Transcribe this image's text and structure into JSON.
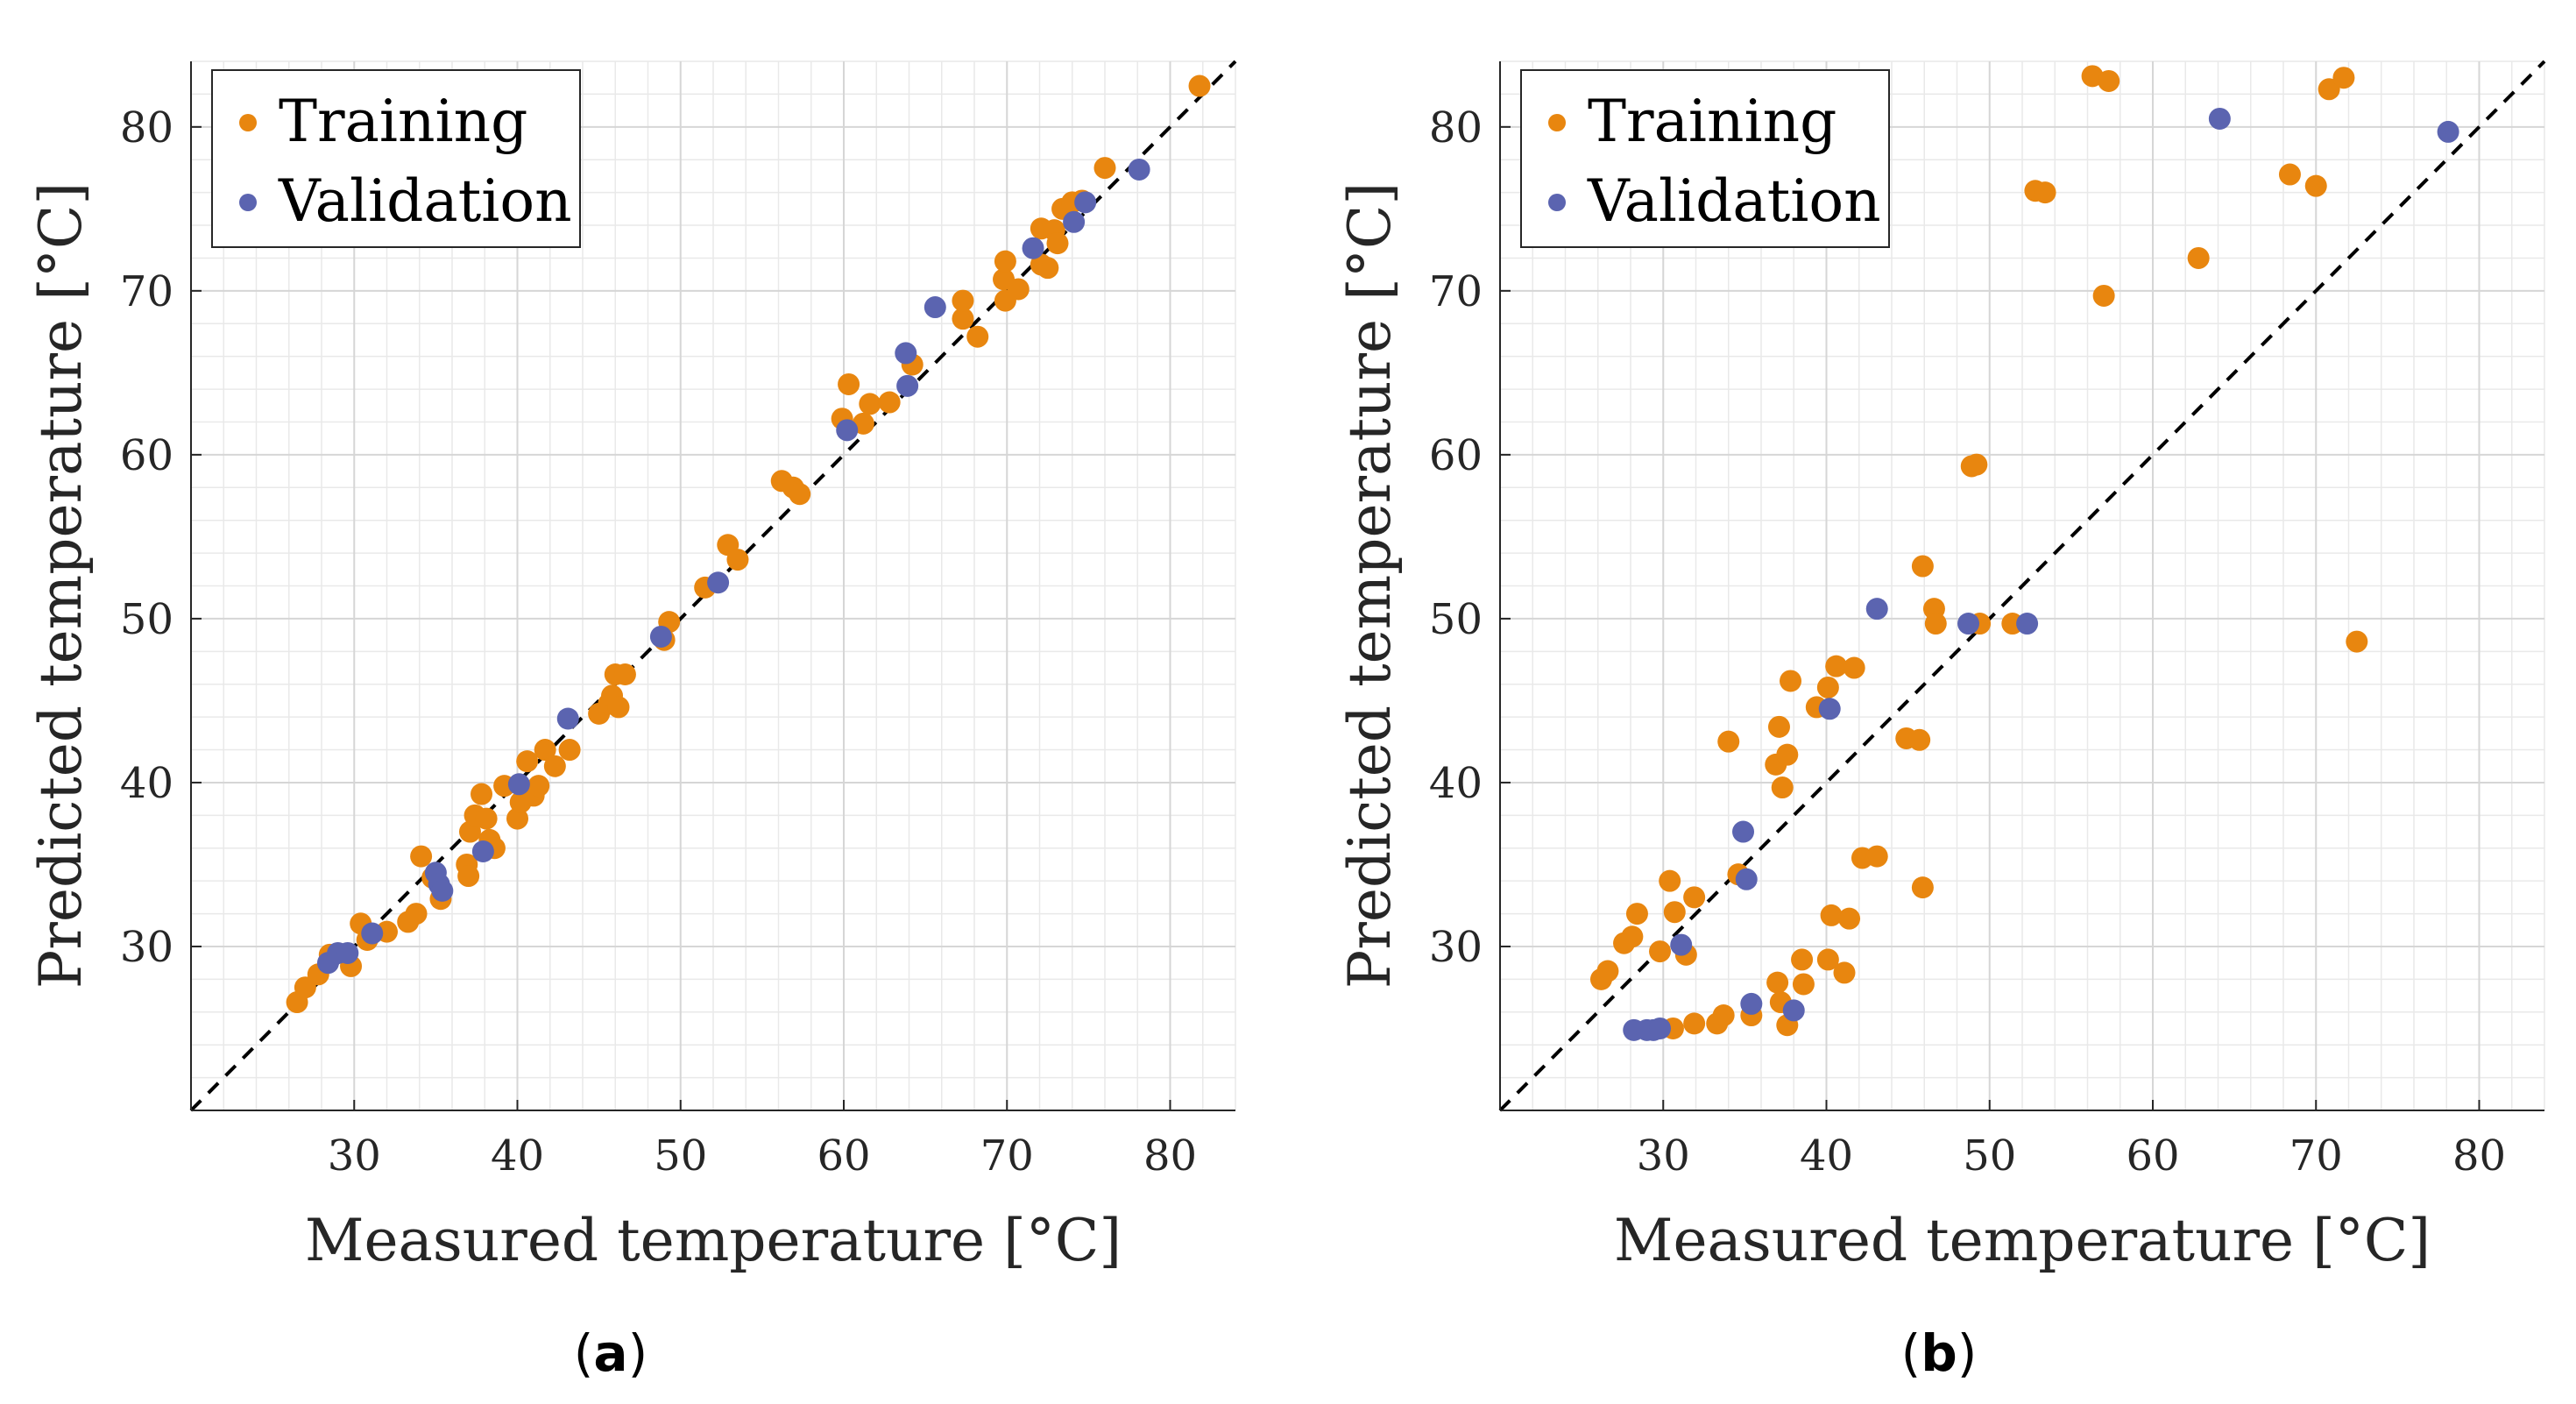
{
  "figure": {
    "colors": {
      "training": "#e8860f",
      "validation": "#5b64b0",
      "grid": "#e9e9e9",
      "axis": "#262626",
      "diagonal": "#000000"
    }
  },
  "chart_data": [
    {
      "type": "scatter",
      "panel_label": "a",
      "xlabel": "Measured temperature [°C]",
      "ylabel": "Predicted temperature [°C]",
      "xlim": [
        20,
        84
      ],
      "ylim": [
        20,
        84
      ],
      "xticks": [
        30,
        40,
        50,
        60,
        70,
        80
      ],
      "yticks": [
        30,
        40,
        50,
        60,
        70,
        80
      ],
      "grid": true,
      "legend": "top-left",
      "reference_line": "y = x (dashed)",
      "series": [
        {
          "name": "Training",
          "color": "#e8860f",
          "points": [
            [
              26.5,
              26.6
            ],
            [
              27,
              27.5
            ],
            [
              27.8,
              28.3
            ],
            [
              28.5,
              29.5
            ],
            [
              29.8,
              28.8
            ],
            [
              30.4,
              31.4
            ],
            [
              30.8,
              30.4
            ],
            [
              32,
              30.9
            ],
            [
              33.3,
              31.5
            ],
            [
              33.8,
              32
            ],
            [
              34.1,
              35.5
            ],
            [
              34.8,
              34.2
            ],
            [
              35.3,
              32.9
            ],
            [
              36.9,
              35
            ],
            [
              37,
              34.3
            ],
            [
              37.1,
              37
            ],
            [
              37.4,
              38
            ],
            [
              37.8,
              39.3
            ],
            [
              38.1,
              37.8
            ],
            [
              38.3,
              36.5
            ],
            [
              38.6,
              36
            ],
            [
              39.2,
              39.8
            ],
            [
              40,
              37.8
            ],
            [
              40.2,
              38.8
            ],
            [
              40.6,
              41.3
            ],
            [
              41,
              39.2
            ],
            [
              41.3,
              39.8
            ],
            [
              41.7,
              42
            ],
            [
              42.3,
              41
            ],
            [
              43.2,
              42
            ],
            [
              45,
              44.2
            ],
            [
              45.6,
              44.8
            ],
            [
              45.8,
              45.3
            ],
            [
              46,
              46.6
            ],
            [
              46.2,
              44.6
            ],
            [
              46.6,
              46.6
            ],
            [
              49,
              48.7
            ],
            [
              49.3,
              49.8
            ],
            [
              51.5,
              51.9
            ],
            [
              52.9,
              54.5
            ],
            [
              53.5,
              53.6
            ],
            [
              56.2,
              58.4
            ],
            [
              56.9,
              58
            ],
            [
              57.3,
              57.6
            ],
            [
              59.9,
              62.2
            ],
            [
              60.3,
              64.3
            ],
            [
              61.2,
              61.9
            ],
            [
              61.6,
              63.1
            ],
            [
              62.8,
              63.2
            ],
            [
              64.2,
              65.5
            ],
            [
              67.3,
              68.3
            ],
            [
              67.3,
              69.4
            ],
            [
              68.2,
              67.2
            ],
            [
              69.8,
              70.7
            ],
            [
              69.9,
              71.8
            ],
            [
              69.9,
              69.4
            ],
            [
              70.7,
              70.1
            ],
            [
              72.1,
              71.6
            ],
            [
              72.1,
              73.8
            ],
            [
              72.5,
              71.4
            ],
            [
              72.9,
              73.7
            ],
            [
              73.1,
              72.9
            ],
            [
              73.4,
              75
            ],
            [
              74,
              75.4
            ],
            [
              74.6,
              75.5
            ],
            [
              76,
              77.5
            ],
            [
              81.8,
              82.5
            ]
          ]
        },
        {
          "name": "Validation",
          "color": "#5b64b0",
          "points": [
            [
              28.4,
              29
            ],
            [
              29,
              29.6
            ],
            [
              29.6,
              29.6
            ],
            [
              31.1,
              30.8
            ],
            [
              35,
              34.5
            ],
            [
              35.2,
              33.8
            ],
            [
              35.4,
              33.4
            ],
            [
              37.9,
              35.8
            ],
            [
              40.1,
              39.9
            ],
            [
              43.1,
              43.9
            ],
            [
              48.8,
              48.9
            ],
            [
              52.3,
              52.2
            ],
            [
              60.2,
              61.5
            ],
            [
              63.8,
              66.2
            ],
            [
              63.9,
              64.2
            ],
            [
              65.6,
              69
            ],
            [
              71.6,
              72.6
            ],
            [
              74.1,
              74.2
            ],
            [
              74.8,
              75.4
            ],
            [
              78.1,
              77.4
            ]
          ]
        }
      ]
    },
    {
      "type": "scatter",
      "panel_label": "b",
      "xlabel": "Measured temperature [°C]",
      "ylabel": "Predicted temperature [°C]",
      "xlim": [
        20,
        84
      ],
      "ylim": [
        20,
        84
      ],
      "xticks": [
        30,
        40,
        50,
        60,
        70,
        80
      ],
      "yticks": [
        30,
        40,
        50,
        60,
        70,
        80
      ],
      "grid": true,
      "legend": "top-left",
      "reference_line": "y = x (dashed)",
      "series": [
        {
          "name": "Training",
          "color": "#e8860f",
          "points": [
            [
              26.2,
              28
            ],
            [
              26.6,
              28.5
            ],
            [
              27.6,
              30.2
            ],
            [
              28.1,
              30.6
            ],
            [
              28.4,
              32
            ],
            [
              29.8,
              29.7
            ],
            [
              30.4,
              34
            ],
            [
              30.6,
              25
            ],
            [
              30.7,
              32.1
            ],
            [
              31.4,
              29.5
            ],
            [
              31.9,
              33
            ],
            [
              31.9,
              25.3
            ],
            [
              33.3,
              25.3
            ],
            [
              33.7,
              25.8
            ],
            [
              34,
              42.5
            ],
            [
              34.6,
              34.4
            ],
            [
              35.4,
              25.8
            ],
            [
              36.9,
              41.1
            ],
            [
              37,
              27.8
            ],
            [
              37.1,
              43.4
            ],
            [
              37.2,
              26.6
            ],
            [
              37.3,
              39.7
            ],
            [
              37.6,
              41.7
            ],
            [
              37.8,
              46.2
            ],
            [
              37.6,
              25.2
            ],
            [
              38.5,
              29.2
            ],
            [
              38.6,
              27.7
            ],
            [
              39.4,
              44.6
            ],
            [
              40.1,
              45.8
            ],
            [
              40.1,
              29.2
            ],
            [
              40.3,
              31.9
            ],
            [
              40.6,
              47.1
            ],
            [
              41.1,
              28.4
            ],
            [
              41.4,
              31.7
            ],
            [
              41.7,
              47
            ],
            [
              42.2,
              35.4
            ],
            [
              43.1,
              35.5
            ],
            [
              44.9,
              42.7
            ],
            [
              45.7,
              42.6
            ],
            [
              45.9,
              53.2
            ],
            [
              45.9,
              33.6
            ],
            [
              46.6,
              50.6
            ],
            [
              46.7,
              49.7
            ],
            [
              48.9,
              59.3
            ],
            [
              49.2,
              59.4
            ],
            [
              49.4,
              49.7
            ],
            [
              51.4,
              49.7
            ],
            [
              52.8,
              76.1
            ],
            [
              53.4,
              76
            ],
            [
              56.3,
              83.1
            ],
            [
              57,
              69.7
            ],
            [
              57.3,
              82.8
            ],
            [
              62.8,
              72
            ],
            [
              68.4,
              77.1
            ],
            [
              70,
              76.4
            ],
            [
              70.8,
              82.3
            ],
            [
              71.7,
              83
            ],
            [
              72.5,
              48.6
            ]
          ]
        },
        {
          "name": "Validation",
          "color": "#5b64b0",
          "points": [
            [
              28.2,
              24.9
            ],
            [
              29,
              24.9
            ],
            [
              29.4,
              24.9
            ],
            [
              29.8,
              25
            ],
            [
              31.1,
              30.1
            ],
            [
              34.9,
              37
            ],
            [
              35.1,
              34.1
            ],
            [
              35.4,
              26.5
            ],
            [
              38,
              26.1
            ],
            [
              40.2,
              44.5
            ],
            [
              43.1,
              50.6
            ],
            [
              48.7,
              49.7
            ],
            [
              52.3,
              49.7
            ],
            [
              64.1,
              80.5
            ],
            [
              78.1,
              79.7
            ]
          ]
        }
      ]
    }
  ]
}
